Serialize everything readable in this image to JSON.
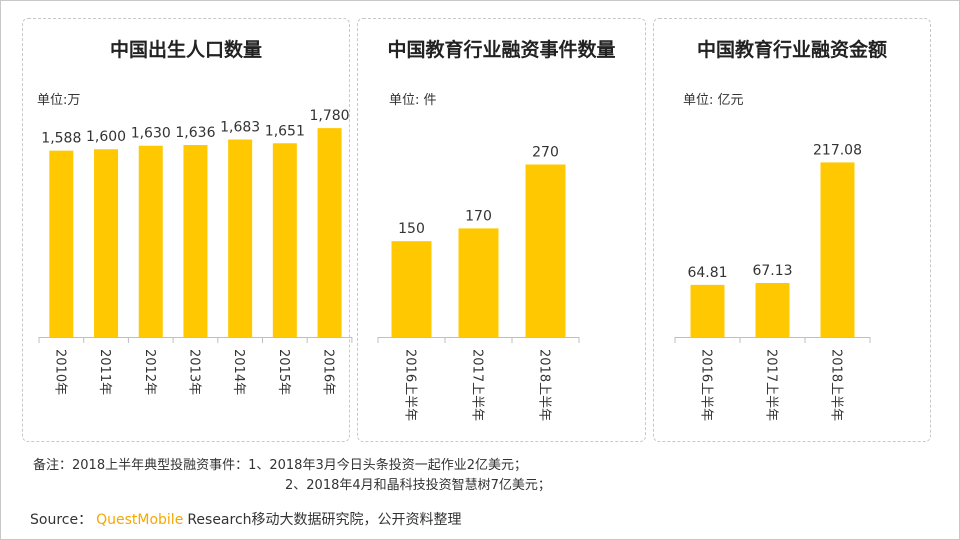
{
  "colors": {
    "bar": "#FFC800",
    "brand": "#F5A800",
    "border": "#c8c8c8"
  },
  "chart_data": [
    {
      "type": "bar",
      "title": "中国出生人口数量",
      "unit": "单位:万",
      "categories": [
        "2010年",
        "2011年",
        "2012年",
        "2013年",
        "2014年",
        "2015年",
        "2016年"
      ],
      "values": [
        1588,
        1600,
        1630,
        1636,
        1683,
        1651,
        1780
      ],
      "value_labels": [
        "1,588",
        "1,600",
        "1,630",
        "1,636",
        "1,683",
        "1,651",
        "1,780"
      ],
      "ylim": [
        0,
        1960
      ],
      "grid": false,
      "legend": "none"
    },
    {
      "type": "bar",
      "title": "中国教育行业融资事件数量",
      "unit": "单位: 件",
      "categories": [
        "2016上半年",
        "2017上半年",
        "2018上半年"
      ],
      "values": [
        150,
        170,
        270
      ],
      "value_labels": [
        "150",
        "170",
        "270"
      ],
      "ylim": [
        0,
        360
      ],
      "grid": false,
      "legend": "none"
    },
    {
      "type": "bar",
      "title": "中国教育行业融资金额",
      "unit": "单位: 亿元",
      "categories": [
        "2016上半年",
        "2017上半年",
        "2018上半年"
      ],
      "values": [
        64.81,
        67.13,
        217.08
      ],
      "value_labels": [
        "64.81",
        "67.13",
        "217.08"
      ],
      "ylim": [
        0,
        286
      ],
      "grid": false,
      "legend": "none"
    }
  ],
  "note": {
    "line1": "备注：2018上半年典型投融资事件：1、2018年3月今日头条投资一起作业2亿美元；",
    "line2": "2、2018年4月和晶科技投资智慧树7亿美元；"
  },
  "source": {
    "label": "Source：",
    "brand": "QuestMobile",
    "text": "Research移动大数据研究院，公开资料整理"
  }
}
